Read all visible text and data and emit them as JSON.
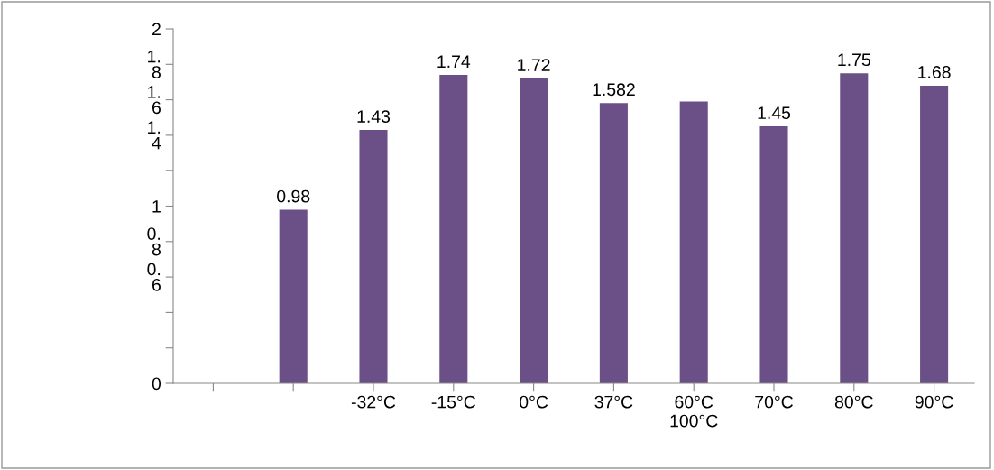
{
  "chart_data": {
    "type": "bar",
    "categories": [
      null,
      null,
      "-32°C",
      "-15°C",
      "0°C",
      "37°C",
      "60°C\n100°C",
      "70°C",
      "80°C",
      "90°C"
    ],
    "values": [
      null,
      0.98,
      1.43,
      1.74,
      1.72,
      1.582,
      1.59,
      1.45,
      1.75,
      1.68
    ],
    "value_labels": [
      null,
      "0.98",
      "1.43",
      "1.74",
      "1.72",
      "1.582",
      null,
      "1.45",
      "1.75",
      "1.68"
    ],
    "color": "#6a5087",
    "ylim": [
      0,
      2
    ],
    "yticks": [
      {
        "value": 0,
        "label": "0"
      },
      {
        "value": 0.2,
        "label": null
      },
      {
        "value": 0.4,
        "label": null
      },
      {
        "value": 0.6,
        "label": "0.\n6"
      },
      {
        "value": 0.8,
        "label": "0.\n8"
      },
      {
        "value": 1,
        "label": "1"
      },
      {
        "value": 1.2,
        "label": null
      },
      {
        "value": 1.4,
        "label": "1.\n4"
      },
      {
        "value": 1.6,
        "label": "1.\n6"
      },
      {
        "value": 1.8,
        "label": "1.\n8"
      },
      {
        "value": 2,
        "label": "2"
      }
    ],
    "grid": false,
    "legend": false
  }
}
